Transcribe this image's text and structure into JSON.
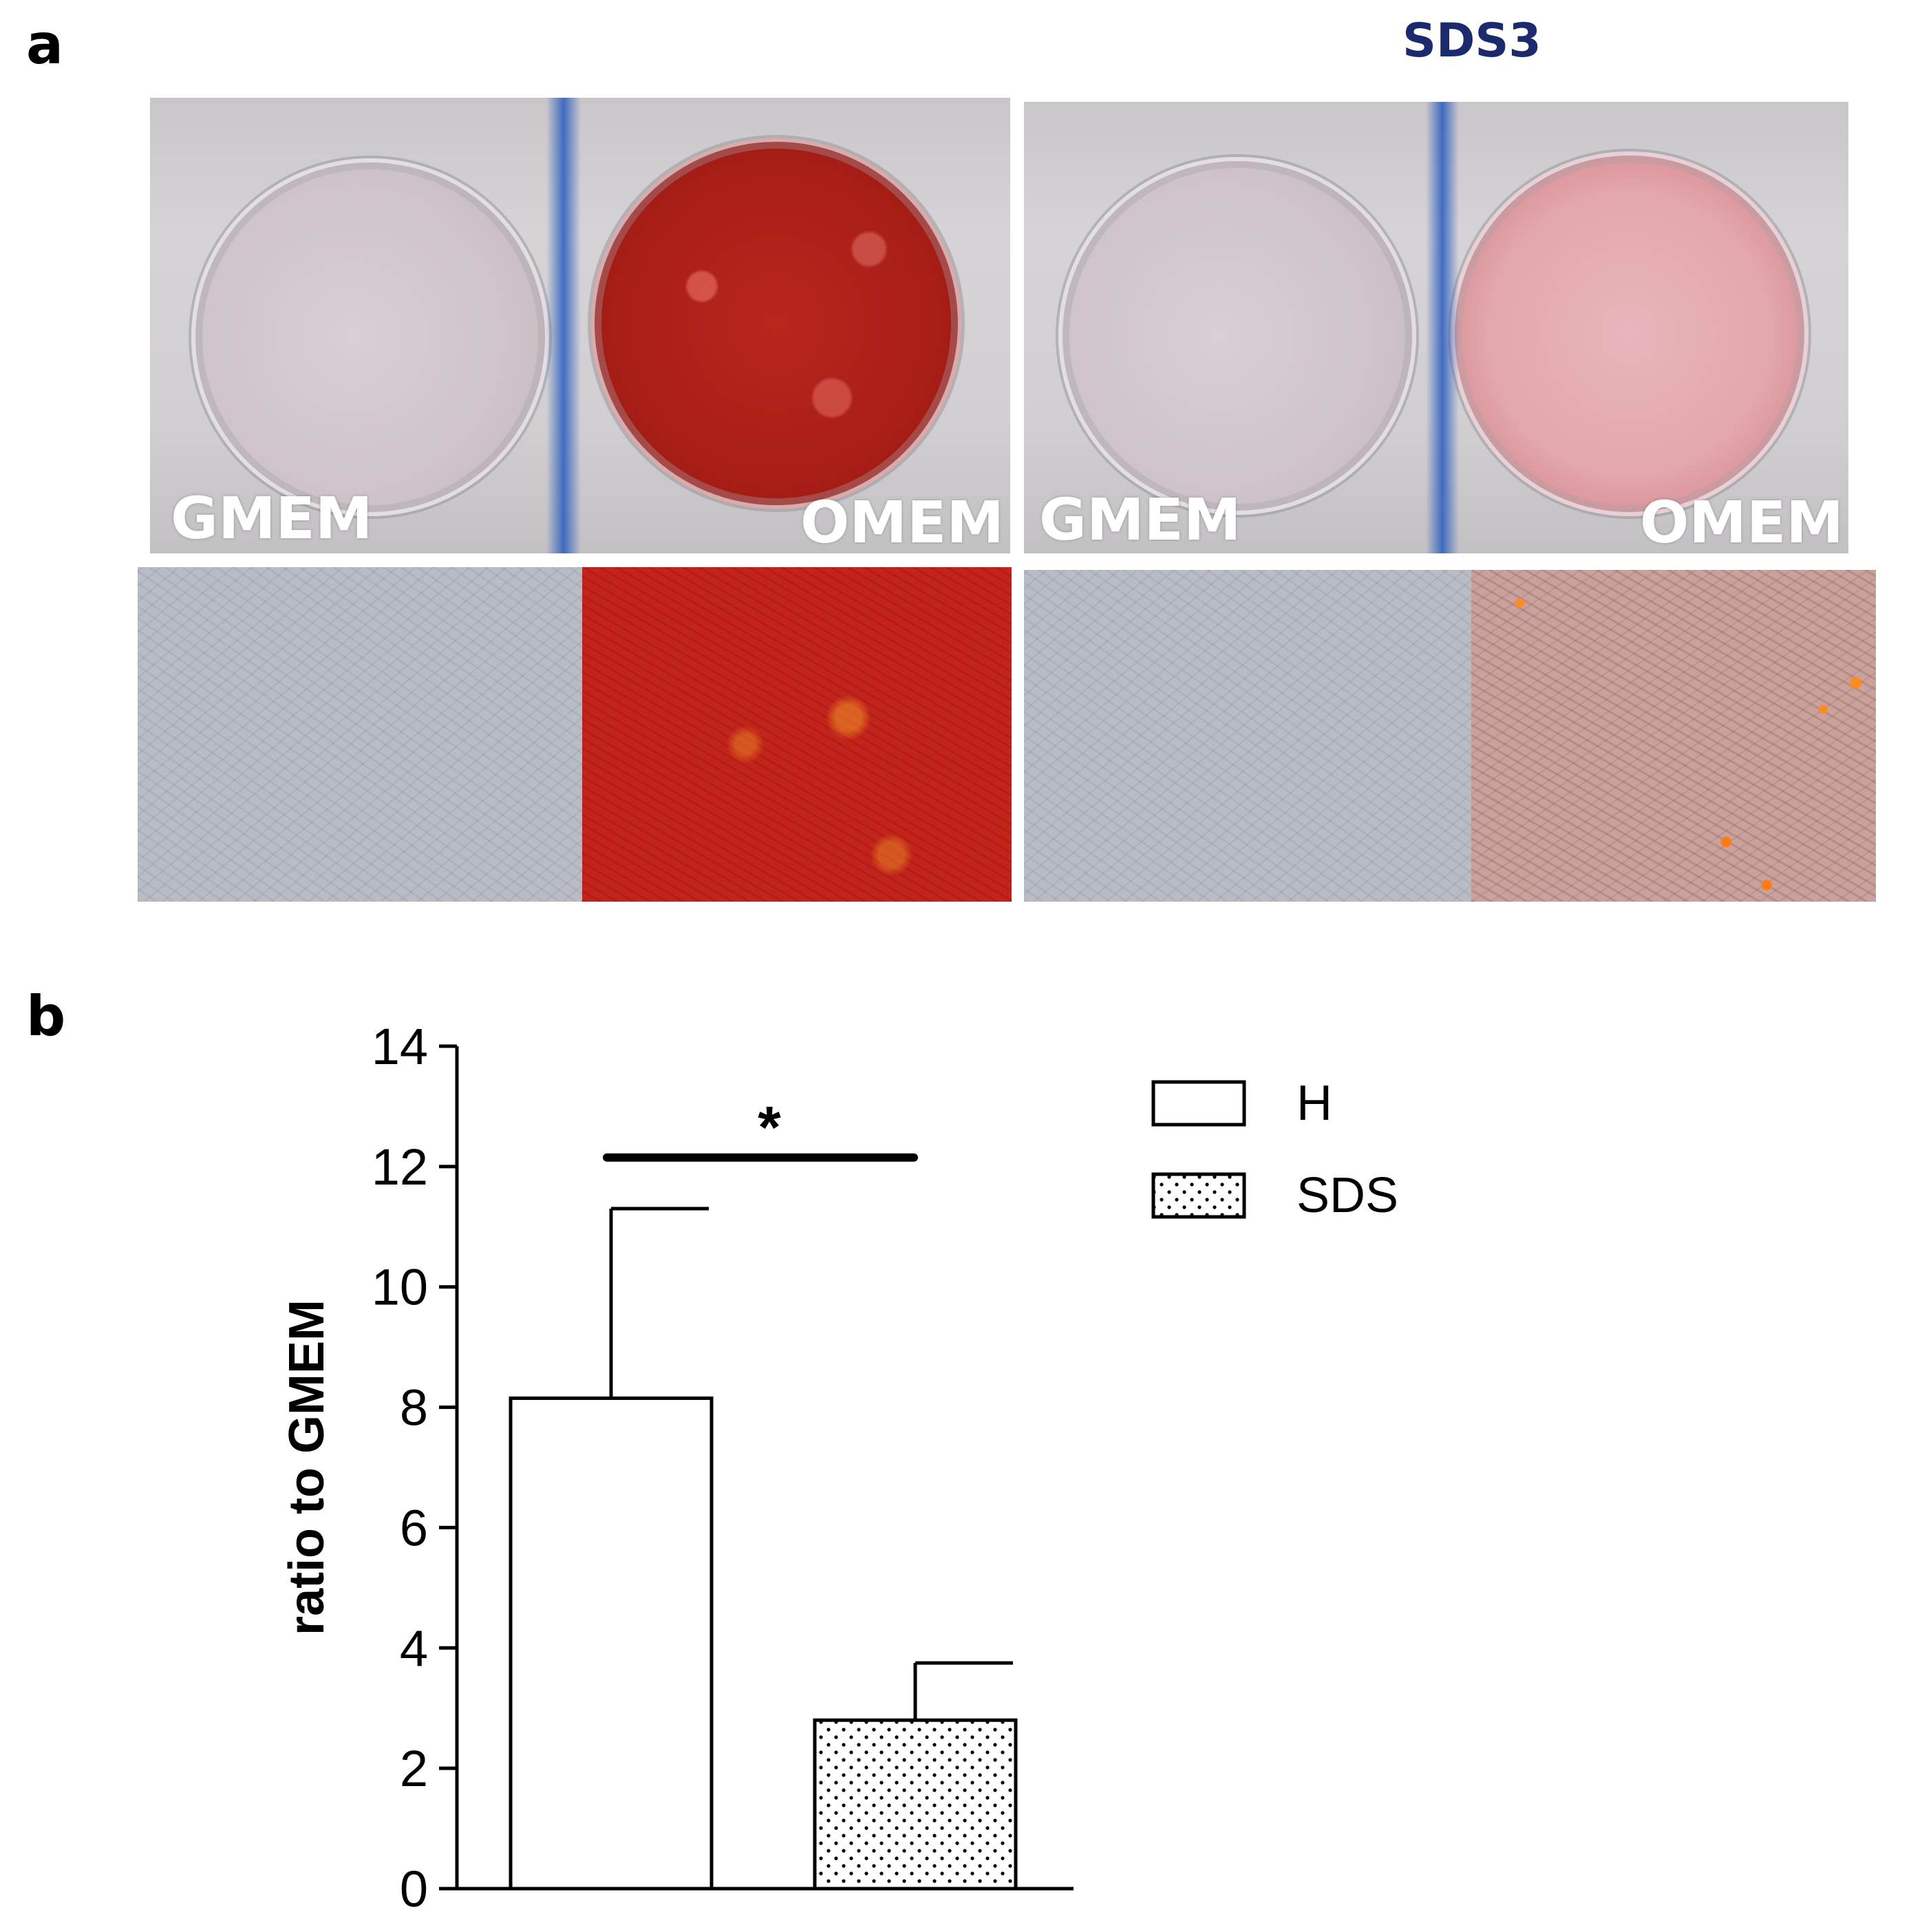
{
  "panels": {
    "a_label": "a",
    "b_label": "b",
    "sds_title": "SDS3"
  },
  "plates": {
    "left": {
      "gmem_label": "GMEM",
      "omem_label": "OMEM"
    },
    "right": {
      "gmem_label": "GMEM",
      "omem_label": "OMEM"
    }
  },
  "colors": {
    "stain_red": "#b8261c",
    "sds_title": "#1a2a6c"
  },
  "chart_data": {
    "type": "bar",
    "categories": [
      "H",
      "SDS"
    ],
    "values": [
      8.15,
      2.8
    ],
    "errors": [
      3.15,
      0.95
    ],
    "ylabel": "ratio to GMEM",
    "ylim": [
      0,
      14
    ],
    "yticks": [
      0,
      2,
      4,
      6,
      8,
      10,
      12,
      14
    ],
    "legend": {
      "placement": "top-right",
      "entries": [
        {
          "label": "H",
          "fill": "white"
        },
        {
          "label": "SDS",
          "fill": "dotted"
        }
      ]
    },
    "significance": {
      "label": "*",
      "between": [
        "H",
        "SDS"
      ]
    },
    "grid": false
  }
}
